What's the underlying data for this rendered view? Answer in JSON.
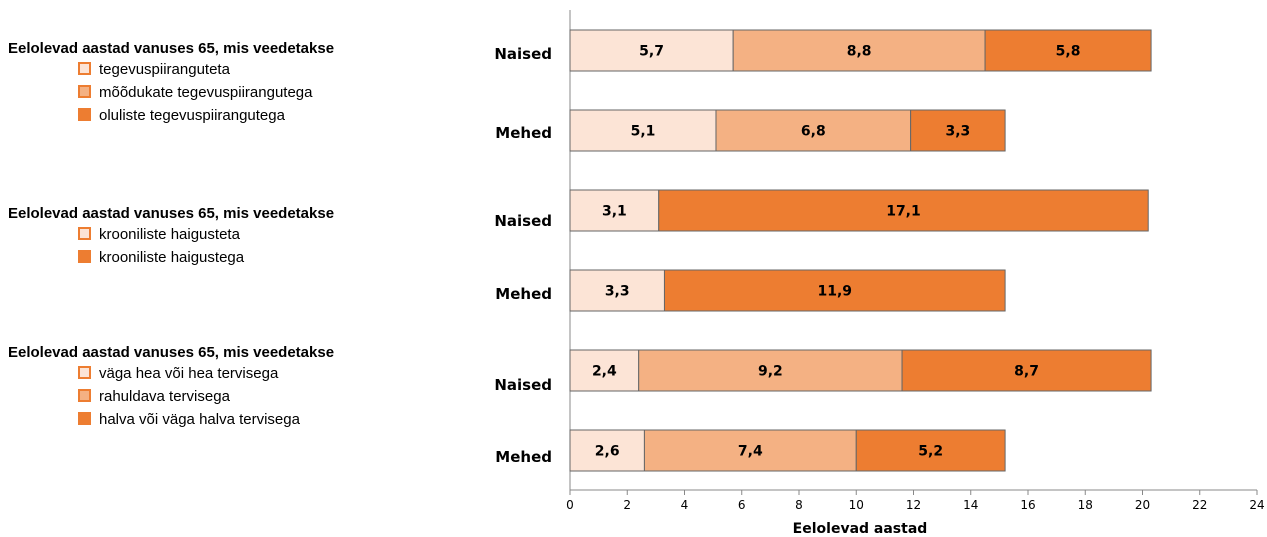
{
  "colors": {
    "light": "#FCE4D6",
    "medium": "#F4B183",
    "dark": "#ED7D31",
    "bar_border": "#666666",
    "axis": "#888888"
  },
  "legend_groups": [
    {
      "title": "Eelolevad aastad vanuses 65, mis veedetakse",
      "items": [
        {
          "label": "tegevuspiiranguteta",
          "color": "light"
        },
        {
          "label": "mõõdukate tegevuspiirangutega",
          "color": "medium"
        },
        {
          "label": "oluliste tegevuspiirangutega",
          "color": "dark"
        }
      ]
    },
    {
      "title": "Eelolevad aastad vanuses 65, mis veedetakse",
      "items": [
        {
          "label": "krooniliste haigusteta",
          "color": "light"
        },
        {
          "label": "krooniliste haigustega",
          "color": "dark"
        }
      ]
    },
    {
      "title": "Eelolevad aastad vanuses 65, mis veedetakse",
      "items": [
        {
          "label": "väga hea või hea tervisega",
          "color": "light"
        },
        {
          "label": "rahuldava tervisega",
          "color": "medium"
        },
        {
          "label": "halva või väga halva tervisega",
          "color": "dark"
        }
      ]
    }
  ],
  "chart_data": {
    "type": "bar",
    "orientation": "horizontal",
    "stacked": true,
    "xlabel": "Eelolevad aastad",
    "xlim": [
      0,
      24
    ],
    "xticks": [
      0,
      2,
      4,
      6,
      8,
      10,
      12,
      14,
      16,
      18,
      20,
      22,
      24
    ],
    "grid": false,
    "rows": [
      {
        "category": "Naised",
        "segments": [
          {
            "value": 5.7,
            "label": "5,7",
            "color": "light"
          },
          {
            "value": 8.8,
            "label": "8,8",
            "color": "medium"
          },
          {
            "value": 5.8,
            "label": "5,8",
            "color": "dark"
          }
        ]
      },
      {
        "category": "Mehed",
        "segments": [
          {
            "value": 5.1,
            "label": "5,1",
            "color": "light"
          },
          {
            "value": 6.8,
            "label": "6,8",
            "color": "medium"
          },
          {
            "value": 3.3,
            "label": "3,3",
            "color": "dark"
          }
        ]
      },
      {
        "category": "Naised",
        "segments": [
          {
            "value": 3.1,
            "label": "3,1",
            "color": "light"
          },
          {
            "value": 17.1,
            "label": "17,1",
            "color": "dark"
          }
        ]
      },
      {
        "category": "Mehed",
        "segments": [
          {
            "value": 3.3,
            "label": "3,3",
            "color": "light"
          },
          {
            "value": 11.9,
            "label": "11,9",
            "color": "dark"
          }
        ]
      },
      {
        "category": "Naised",
        "segments": [
          {
            "value": 2.4,
            "label": "2,4",
            "color": "light"
          },
          {
            "value": 9.2,
            "label": "9,2",
            "color": "medium"
          },
          {
            "value": 8.7,
            "label": "8,7",
            "color": "dark"
          }
        ]
      },
      {
        "category": "Mehed",
        "segments": [
          {
            "value": 2.6,
            "label": "2,6",
            "color": "light"
          },
          {
            "value": 7.4,
            "label": "7,4",
            "color": "medium"
          },
          {
            "value": 5.2,
            "label": "5,2",
            "color": "dark"
          }
        ]
      }
    ]
  }
}
